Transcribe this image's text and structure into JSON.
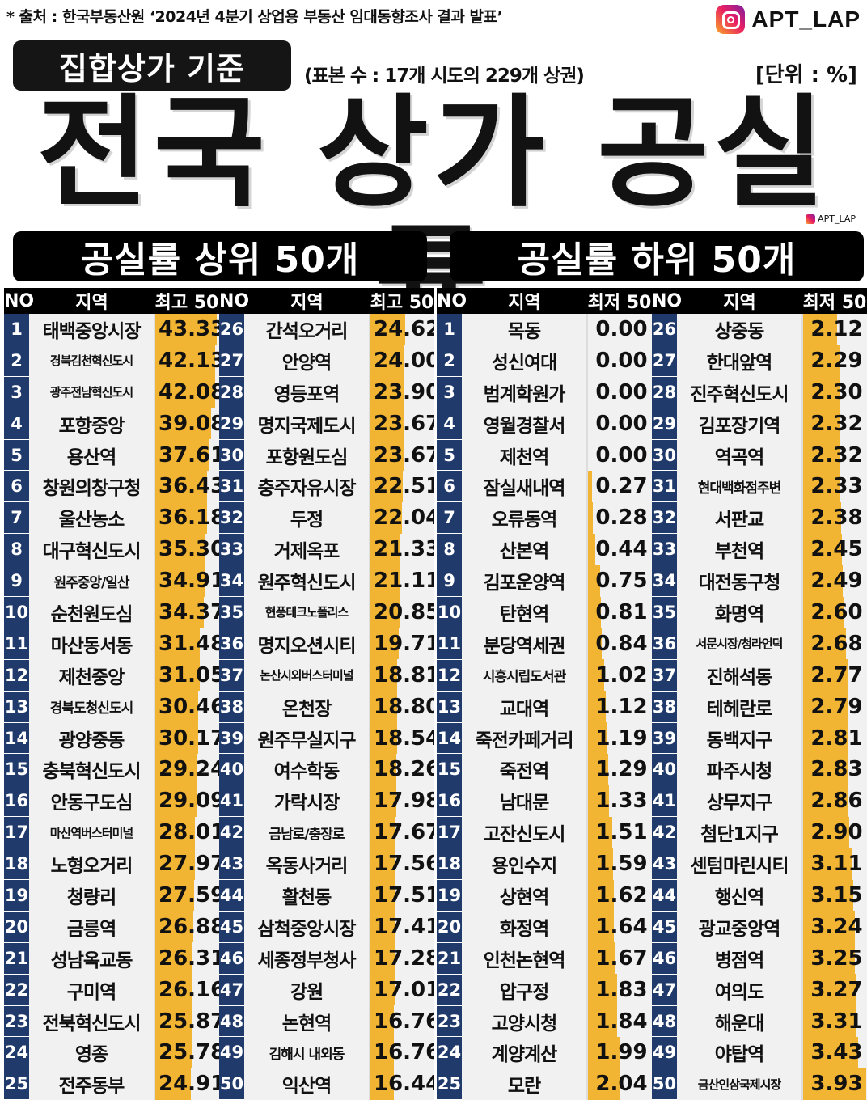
{
  "header": {
    "source_note": "* 출처 : 한국부동산원 ‘2024년 4분기 상업용 부동산 임대동향조사 결과 발표’",
    "brand": "APT_LAP",
    "badge": "집합상가 기준",
    "sample": "(표본 수 : 17개 시도의 229개 상권)",
    "unit": "[단위 : %]",
    "title": "전국 상가 공실률",
    "small_brand": "APT_LAP"
  },
  "sections": {
    "top_title": "공실률 상위 50개",
    "bottom_title": "공실률 하위 50개"
  },
  "columns": {
    "no": "NO",
    "region": "지역",
    "top_value": "최고 50",
    "bottom_value": "최저 50"
  },
  "colors": {
    "bar": "#f2b533",
    "no_cell": "#1f3a6b",
    "header": "#000000"
  },
  "chart_data": {
    "type": "table",
    "title": "전국 상가 공실률",
    "unit": "%",
    "tables": [
      {
        "name": "공실률 상위 50개",
        "rows": [
          {
            "no": "1",
            "region": "태백중앙시장",
            "value": 43.33
          },
          {
            "no": "2",
            "region": "경북김천혁신도시",
            "value": 42.13
          },
          {
            "no": "3",
            "region": "광주전남혁신도시",
            "value": 42.08
          },
          {
            "no": "4",
            "region": "포항중앙",
            "value": 39.08
          },
          {
            "no": "5",
            "region": "용산역",
            "value": 37.61
          },
          {
            "no": "6",
            "region": "창원의창구청",
            "value": 36.43
          },
          {
            "no": "7",
            "region": "울산농소",
            "value": 36.18
          },
          {
            "no": "8",
            "region": "대구혁신도시",
            "value": 35.3
          },
          {
            "no": "9",
            "region": "원주중앙/일산",
            "value": 34.91
          },
          {
            "no": "10",
            "region": "순천원도심",
            "value": 34.37
          },
          {
            "no": "11",
            "region": "마산동서동",
            "value": 31.48
          },
          {
            "no": "12",
            "region": "제천중앙",
            "value": 31.05
          },
          {
            "no": "13",
            "region": "경북도청신도시",
            "value": 30.46
          },
          {
            "no": "14",
            "region": "광양중동",
            "value": 30.17
          },
          {
            "no": "15",
            "region": "충북혁신도시",
            "value": 29.24
          },
          {
            "no": "16",
            "region": "안동구도심",
            "value": 29.09
          },
          {
            "no": "17",
            "region": "마산역버스터미널",
            "value": 28.01
          },
          {
            "no": "18",
            "region": "노형오거리",
            "value": 27.97
          },
          {
            "no": "19",
            "region": "청량리",
            "value": 27.59
          },
          {
            "no": "20",
            "region": "금릉역",
            "value": 26.88
          },
          {
            "no": "21",
            "region": "성남옥교동",
            "value": 26.31
          },
          {
            "no": "22",
            "region": "구미역",
            "value": 26.16
          },
          {
            "no": "23",
            "region": "전북혁신도시",
            "value": 25.87
          },
          {
            "no": "24",
            "region": "영종",
            "value": 25.78
          },
          {
            "no": "25",
            "region": "전주동부",
            "value": 24.91
          },
          {
            "no": "26",
            "region": "간석오거리",
            "value": 24.62
          },
          {
            "no": "27",
            "region": "안양역",
            "value": 24.0
          },
          {
            "no": "28",
            "region": "영등포역",
            "value": 23.9
          },
          {
            "no": "29",
            "region": "명지국제도시",
            "value": 23.67
          },
          {
            "no": "30",
            "region": "포항원도심",
            "value": 23.67
          },
          {
            "no": "31",
            "region": "충주자유시장",
            "value": 22.51
          },
          {
            "no": "32",
            "region": "두정",
            "value": 22.04
          },
          {
            "no": "33",
            "region": "거제옥포",
            "value": 21.33
          },
          {
            "no": "34",
            "region": "원주혁신도시",
            "value": 21.11
          },
          {
            "no": "35",
            "region": "현풍테크노폴리스",
            "value": 20.85
          },
          {
            "no": "36",
            "region": "명지오션시티",
            "value": 19.71
          },
          {
            "no": "37",
            "region": "논산시외버스터미널",
            "value": 18.81
          },
          {
            "no": "38",
            "region": "온천장",
            "value": 18.8
          },
          {
            "no": "39",
            "region": "원주무실지구",
            "value": 18.54
          },
          {
            "no": "40",
            "region": "여수학동",
            "value": 18.26
          },
          {
            "no": "41",
            "region": "가락시장",
            "value": 17.98
          },
          {
            "no": "42",
            "region": "금남로/충장로",
            "value": 17.67
          },
          {
            "no": "43",
            "region": "옥동사거리",
            "value": 17.56
          },
          {
            "no": "44",
            "region": "활천동",
            "value": 17.51
          },
          {
            "no": "45",
            "region": "삼척중앙시장",
            "value": 17.41
          },
          {
            "no": "46",
            "region": "세종정부청사",
            "value": 17.28
          },
          {
            "no": "47",
            "region": "강원",
            "value": 17.01
          },
          {
            "no": "48",
            "region": "논현역",
            "value": 16.76
          },
          {
            "no": "49",
            "region": "김해시 내외동",
            "value": 16.76
          },
          {
            "no": "50",
            "region": "익산역",
            "value": 16.44
          }
        ]
      },
      {
        "name": "공실률 하위 50개",
        "rows": [
          {
            "no": "1",
            "region": "목동",
            "value": 0.0
          },
          {
            "no": "2",
            "region": "성신여대",
            "value": 0.0
          },
          {
            "no": "3",
            "region": "범계학원가",
            "value": 0.0
          },
          {
            "no": "4",
            "region": "영월경찰서",
            "value": 0.0
          },
          {
            "no": "5",
            "region": "제천역",
            "value": 0.0
          },
          {
            "no": "6",
            "region": "잠실새내역",
            "value": 0.27
          },
          {
            "no": "7",
            "region": "오류동역",
            "value": 0.28
          },
          {
            "no": "8",
            "region": "산본역",
            "value": 0.44
          },
          {
            "no": "9",
            "region": "김포운양역",
            "value": 0.75
          },
          {
            "no": "10",
            "region": "탄현역",
            "value": 0.81
          },
          {
            "no": "11",
            "region": "분당역세권",
            "value": 0.84
          },
          {
            "no": "12",
            "region": "시흥시립도서관",
            "value": 1.02
          },
          {
            "no": "13",
            "region": "교대역",
            "value": 1.12
          },
          {
            "no": "14",
            "region": "죽전카페거리",
            "value": 1.19
          },
          {
            "no": "15",
            "region": "죽전역",
            "value": 1.29
          },
          {
            "no": "16",
            "region": "남대문",
            "value": 1.33
          },
          {
            "no": "17",
            "region": "고잔신도시",
            "value": 1.51
          },
          {
            "no": "18",
            "region": "용인수지",
            "value": 1.59
          },
          {
            "no": "19",
            "region": "상현역",
            "value": 1.62
          },
          {
            "no": "20",
            "region": "화정역",
            "value": 1.64
          },
          {
            "no": "21",
            "region": "인천논현역",
            "value": 1.67
          },
          {
            "no": "22",
            "region": "압구정",
            "value": 1.83
          },
          {
            "no": "23",
            "region": "고양시청",
            "value": 1.84
          },
          {
            "no": "24",
            "region": "계양계산",
            "value": 1.99
          },
          {
            "no": "25",
            "region": "모란",
            "value": 2.04
          },
          {
            "no": "26",
            "region": "상중동",
            "value": 2.12
          },
          {
            "no": "27",
            "region": "한대앞역",
            "value": 2.29
          },
          {
            "no": "28",
            "region": "진주혁신도시",
            "value": 2.3
          },
          {
            "no": "29",
            "region": "김포장기역",
            "value": 2.32
          },
          {
            "no": "30",
            "region": "역곡역",
            "value": 2.32
          },
          {
            "no": "31",
            "region": "현대백화점주변",
            "value": 2.33
          },
          {
            "no": "32",
            "region": "서판교",
            "value": 2.38
          },
          {
            "no": "33",
            "region": "부천역",
            "value": 2.45
          },
          {
            "no": "34",
            "region": "대전동구청",
            "value": 2.49
          },
          {
            "no": "35",
            "region": "화명역",
            "value": 2.6
          },
          {
            "no": "36",
            "region": "서문시장/청라언덕",
            "value": 2.68
          },
          {
            "no": "37",
            "region": "진해석동",
            "value": 2.77
          },
          {
            "no": "38",
            "region": "테헤란로",
            "value": 2.79
          },
          {
            "no": "39",
            "region": "동백지구",
            "value": 2.81
          },
          {
            "no": "40",
            "region": "파주시청",
            "value": 2.83
          },
          {
            "no": "41",
            "region": "상무지구",
            "value": 2.86
          },
          {
            "no": "42",
            "region": "첨단1지구",
            "value": 2.9
          },
          {
            "no": "43",
            "region": "센텀마린시티",
            "value": 3.11
          },
          {
            "no": "44",
            "region": "행신역",
            "value": 3.15
          },
          {
            "no": "45",
            "region": "광교중앙역",
            "value": 3.24
          },
          {
            "no": "46",
            "region": "병점역",
            "value": 3.25
          },
          {
            "no": "47",
            "region": "여의도",
            "value": 3.27
          },
          {
            "no": "48",
            "region": "해운대",
            "value": 3.31
          },
          {
            "no": "49",
            "region": "야탑역",
            "value": 3.43
          },
          {
            "no": "50",
            "region": "금산인삼국제시장",
            "value": 3.93
          }
        ]
      }
    ]
  }
}
